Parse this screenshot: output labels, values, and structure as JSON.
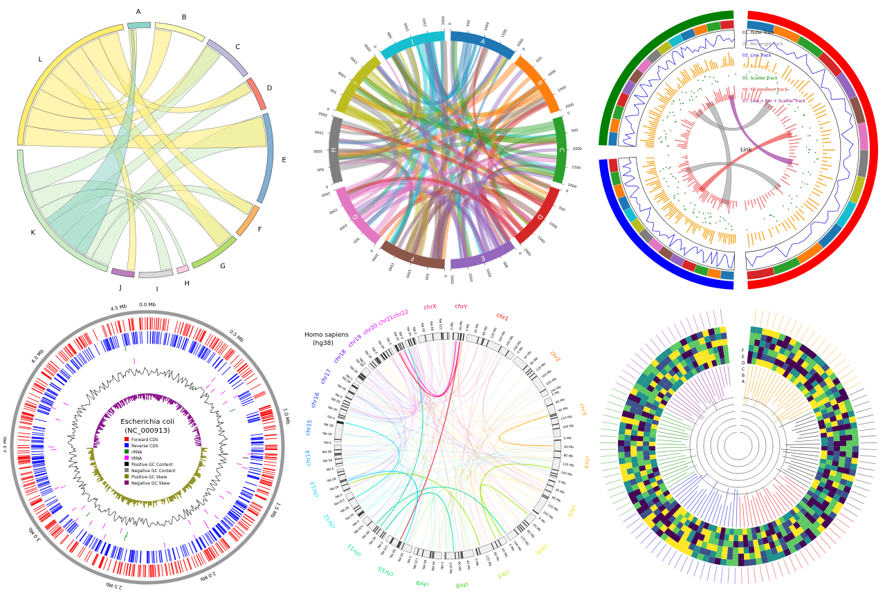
{
  "panel1": {
    "labels": [
      "A",
      "B",
      "C",
      "D",
      "E",
      "F",
      "G",
      "H",
      "I",
      "J",
      "K",
      "L"
    ],
    "colors": [
      "#8ed3c7",
      "#fefeb3",
      "#bdbad9",
      "#f98073",
      "#80b0d2",
      "#fcb462",
      "#b3dd69",
      "#fccde4",
      "#d9d9d9",
      "#bb7fbc",
      "#ccebc5",
      "#ffed6f"
    ]
  },
  "panel2": {
    "labels": [
      "A",
      "B",
      "C",
      "D",
      "E",
      "F",
      "G",
      "H",
      "I",
      "J"
    ],
    "colors": [
      "#1f77b4",
      "#ff7f0e",
      "#2ca02c",
      "#d62728",
      "#9467bd",
      "#8c564b",
      "#e377c2",
      "#7f7f7f",
      "#bcbd22",
      "#17becf"
    ],
    "ticks": [
      "0",
      "500",
      "1000",
      "1500",
      "2000"
    ]
  },
  "panel3": {
    "legend": [
      {
        "label": "01. Outer Track",
        "color": "#000000"
      },
      {
        "label": "02. Rectangle Track",
        "color": "#888888"
      },
      {
        "label": "03. Line Track",
        "color": "#0000dd"
      },
      {
        "label": "04. Bar Track",
        "color": "#f5a623"
      },
      {
        "label": "05. Scatter Track",
        "color": "#008000"
      },
      {
        "label": "06. Fill between Track",
        "color": "#e8262a"
      },
      {
        "label": "07. Line + Bar + Scatter Track",
        "color": "#800080"
      }
    ],
    "link_label": "Link",
    "sector_colors": [
      "#008000",
      "#0000ff",
      "#ff0000"
    ]
  },
  "panel4": {
    "title_line1": "Escherichia coli",
    "title_line2": "(NC_000913)",
    "ticks": [
      "0.0 Mb",
      "0.5 Mb",
      "1.0 Mb",
      "1.5 Mb",
      "2.0 Mb",
      "2.5 Mb",
      "3.0 Mb",
      "3.5 Mb",
      "4.0 Mb",
      "4.5 Mb"
    ],
    "legend": [
      {
        "label": "Forward CDS",
        "color": "#ff0000"
      },
      {
        "label": "Reverse CDS",
        "color": "#0000ff"
      },
      {
        "label": "rRNA",
        "color": "#008000"
      },
      {
        "label": "tRNA",
        "color": "#ff00ff"
      },
      {
        "label": "Positive GC Content",
        "color": "#000000"
      },
      {
        "label": "Negative GC Content",
        "color": "#808080"
      },
      {
        "label": "Positive GC Skew",
        "color": "#808000"
      },
      {
        "label": "Negative GC Skew",
        "color": "#800080"
      }
    ]
  },
  "panel5": {
    "title_line1": "Homo sapiens",
    "title_line2": "(hg38)",
    "chromosomes": [
      {
        "name": "chr1",
        "color": "#ff0000"
      },
      {
        "name": "chr2",
        "color": "#ff6600"
      },
      {
        "name": "chr3",
        "color": "#ff9900"
      },
      {
        "name": "chr4",
        "color": "#ffaa00"
      },
      {
        "name": "chr5",
        "color": "#ffcc00"
      },
      {
        "name": "chr6",
        "color": "#e6e600"
      },
      {
        "name": "chr7",
        "color": "#99e600"
      },
      {
        "name": "chr8",
        "color": "#33cc00"
      },
      {
        "name": "chr9",
        "color": "#00cc33"
      },
      {
        "name": "chr10",
        "color": "#00dd66"
      },
      {
        "name": "chr11",
        "color": "#00ddaa"
      },
      {
        "name": "chr12",
        "color": "#00e6e6"
      },
      {
        "name": "chr13",
        "color": "#00ccff"
      },
      {
        "name": "chr14",
        "color": "#0099ff"
      },
      {
        "name": "chr15",
        "color": "#0066ff"
      },
      {
        "name": "chr16",
        "color": "#0033ff"
      },
      {
        "name": "chr17",
        "color": "#3300ff"
      },
      {
        "name": "chr18",
        "color": "#6600ff"
      },
      {
        "name": "chr19",
        "color": "#9900ff"
      },
      {
        "name": "chr20",
        "color": "#cc00ff"
      },
      {
        "name": "chr21",
        "color": "#ff00ff"
      },
      {
        "name": "chr22",
        "color": "#ff00cc"
      },
      {
        "name": "chrX",
        "color": "#ff0066"
      },
      {
        "name": "chrY",
        "color": "#ff0033"
      }
    ],
    "mb_labels": [
      "0 Mb",
      "40 Mb",
      "80 Mb",
      "120 Mb",
      "160 Mb",
      "200 Mb",
      "240 Mb"
    ]
  },
  "panel6": {
    "ring_labels": [
      "F",
      "E",
      "D",
      "C",
      "B",
      "A"
    ],
    "clade_colors": [
      "#f5a623",
      "#333333",
      "#e8262a",
      "#3333dd",
      "#33a02c",
      "#a040a0"
    ]
  }
}
